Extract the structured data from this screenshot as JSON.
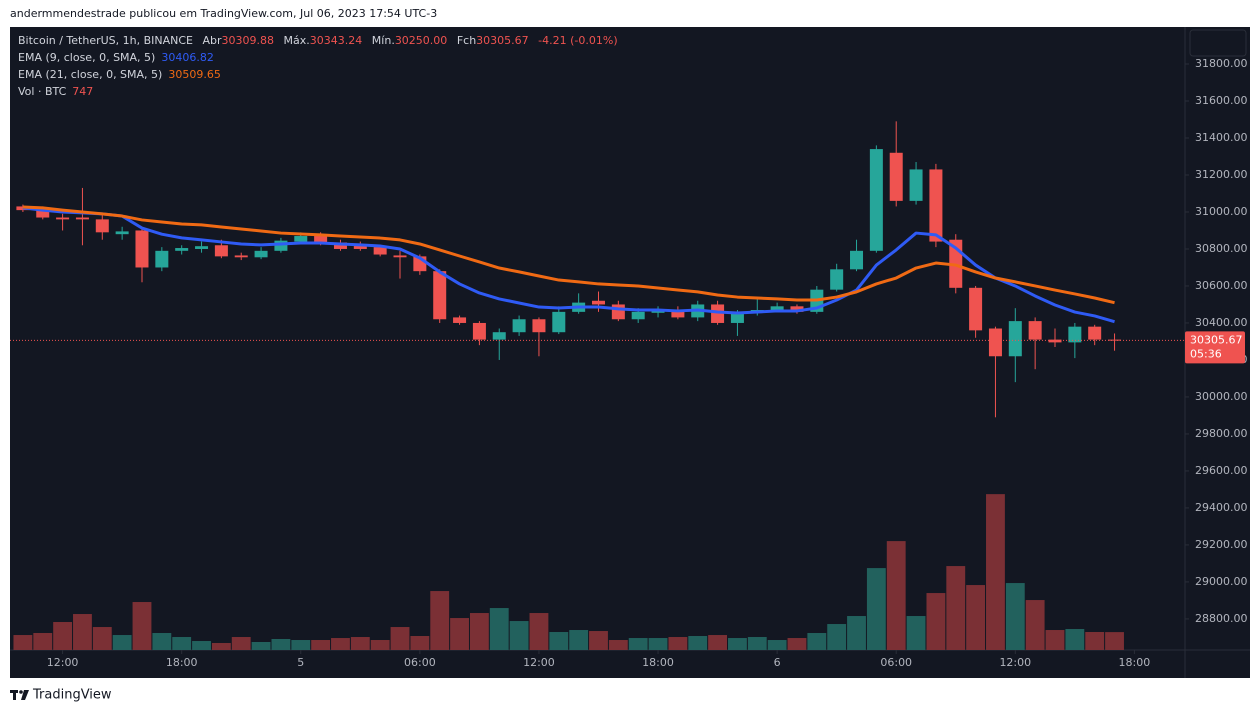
{
  "page": {
    "attribution": "andermmendestrade publicou em TradingView.com, Jul 06, 2023 17:54 UTC-3",
    "brand": "TradingView"
  },
  "chart_data": {
    "type": "candlestick",
    "title": "Bitcoin / TetherUS, 1h, BINANCE",
    "header": {
      "open_label": "Abr",
      "high_label": "Máx.",
      "low_label": "Mín.",
      "close_label": "Fch",
      "low_value_label": "30250.00",
      "change": "-4.21 (-0.01%)"
    },
    "open": [
      31030,
      31020,
      30970,
      30970,
      30960,
      30880,
      30900,
      30700,
      30790,
      30800,
      30820,
      30765,
      30755,
      30790,
      30840,
      30870,
      30835,
      30820,
      30810,
      30765,
      30760,
      30680,
      30430,
      30400,
      30310,
      30350,
      30420,
      30350,
      30460,
      30520,
      30500,
      30420,
      30455,
      30470,
      30430,
      30500,
      30400,
      30460,
      30470,
      30490,
      30460,
      30580,
      30690,
      30790,
      31320,
      31060,
      31230,
      30850,
      30590,
      30370,
      30220,
      30410,
      30310,
      30295,
      30380,
      30309.88
    ],
    "high": [
      31040,
      31030,
      30990,
      31130,
      30990,
      30920,
      30910,
      30810,
      30820,
      30840,
      30850,
      30780,
      30810,
      30860,
      30890,
      30890,
      30850,
      30840,
      30820,
      30790,
      30770,
      30690,
      30440,
      30410,
      30370,
      30440,
      30430,
      30490,
      30560,
      30570,
      30520,
      30480,
      30490,
      30490,
      30520,
      30520,
      30470,
      30530,
      30510,
      30500,
      30600,
      30720,
      30850,
      31360,
      31490,
      31270,
      31260,
      30880,
      30600,
      30380,
      30480,
      30430,
      30370,
      30400,
      30390,
      30343.24
    ],
    "low": [
      31000,
      30960,
      30900,
      30820,
      30850,
      30850,
      30620,
      30680,
      30770,
      30780,
      30750,
      30740,
      30745,
      30780,
      30830,
      30820,
      30790,
      30790,
      30760,
      30640,
      30660,
      30400,
      30390,
      30280,
      30200,
      30330,
      30220,
      30340,
      30450,
      30460,
      30410,
      30400,
      30430,
      30420,
      30410,
      30390,
      30330,
      30440,
      30460,
      30450,
      30450,
      30570,
      30680,
      30780,
      31030,
      31040,
      30810,
      30560,
      30320,
      29890,
      30080,
      30150,
      30270,
      30210,
      30280,
      30250
    ],
    "close": [
      31010,
      30970,
      30960,
      30960,
      30890,
      30895,
      30700,
      30790,
      30805,
      30815,
      30760,
      30755,
      30790,
      30845,
      30870,
      30830,
      30800,
      30800,
      30770,
      30755,
      30680,
      30420,
      30400,
      30310,
      30350,
      30420,
      30350,
      30460,
      30510,
      30500,
      30420,
      30460,
      30470,
      30430,
      30500,
      30400,
      30460,
      30470,
      30490,
      30460,
      30580,
      30690,
      30790,
      31340,
      31060,
      31230,
      30840,
      30590,
      30360,
      30220,
      30410,
      30310,
      30295,
      30380,
      30310,
      30305.67
    ],
    "volume_name": "Vol · BTC",
    "volume": [
      625,
      709,
      1168,
      1501,
      959,
      625,
      2002,
      709,
      542,
      375,
      292,
      542,
      334,
      459,
      417,
      417,
      500,
      542,
      417,
      959,
      584,
      2460,
      1334,
      1543,
      1751,
      1209,
      1543,
      751,
      834,
      792,
      417,
      500,
      500,
      542,
      584,
      625,
      500,
      542,
      417,
      500,
      709,
      1084,
      1418,
      3419,
      4545,
      1418,
      2377,
      3503,
      2711,
      6505,
      2794,
      2085,
      834,
      876,
      751,
      747
    ],
    "series": [
      {
        "name": "EMA (9, close, 0, SMA, 5)",
        "color": "#2f5bf5",
        "values": [
          31022,
          31010,
          31000,
          30995,
          30990,
          30978,
          30913,
          30880,
          30860,
          30849,
          30838,
          30827,
          30822,
          30827,
          30832,
          30832,
          30827,
          30822,
          30816,
          30800,
          30751,
          30676,
          30611,
          30562,
          30530,
          30508,
          30486,
          30481,
          30486,
          30486,
          30476,
          30470,
          30470,
          30465,
          30470,
          30459,
          30454,
          30459,
          30465,
          30465,
          30481,
          30524,
          30578,
          30713,
          30795,
          30886,
          30876,
          30805,
          30713,
          30643,
          30600,
          30546,
          30497,
          30459,
          30438,
          30406.82
        ]
      },
      {
        "name": "EMA (21, close, 0, SMA, 5)",
        "color": "#f06a14",
        "values": [
          31027,
          31022,
          31010,
          31000,
          30990,
          30978,
          30957,
          30946,
          30935,
          30930,
          30919,
          30908,
          30897,
          30886,
          30881,
          30876,
          30870,
          30865,
          30859,
          30849,
          30827,
          30795,
          30762,
          30730,
          30697,
          30676,
          30654,
          30632,
          30622,
          30611,
          30605,
          30600,
          30589,
          30578,
          30568,
          30551,
          30540,
          30535,
          30530,
          30524,
          30524,
          30540,
          30568,
          30611,
          30643,
          30697,
          30724,
          30713,
          30676,
          30643,
          30622,
          30600,
          30578,
          30557,
          30535,
          30509.65
        ]
      }
    ],
    "up_color": "#26a69a",
    "down_color": "#ef5350",
    "volume_up_color": "#22615d",
    "volume_down_color": "#7b3035",
    "ylim": [
      28632,
      32000
    ],
    "yticks": [
      {
        "value": 28800,
        "label": "28800.00"
      },
      {
        "value": 29000,
        "label": "29000.00"
      },
      {
        "value": 29200,
        "label": "29200.00"
      },
      {
        "value": 29400,
        "label": "29400.00"
      },
      {
        "value": 29600,
        "label": "29600.00"
      },
      {
        "value": 29800,
        "label": "29800.00"
      },
      {
        "value": 30000,
        "label": "30000.00"
      },
      {
        "value": 30200,
        "label": "30200.00"
      },
      {
        "value": 30400,
        "label": "30400.00"
      },
      {
        "value": 30600,
        "label": "30600.00"
      },
      {
        "value": 30800,
        "label": "30800.00"
      },
      {
        "value": 31000,
        "label": "31000.00"
      },
      {
        "value": 31200,
        "label": "31200.00"
      },
      {
        "value": 31400,
        "label": "31400.00"
      },
      {
        "value": 31600,
        "label": "31600.00"
      },
      {
        "value": 31800,
        "label": "31800.00"
      }
    ],
    "volume_ylim": [
      0,
      26000
    ],
    "xlim": [
      -0.65,
      58.55
    ],
    "xticks": [
      {
        "value": 2,
        "label": "12:00"
      },
      {
        "value": 8,
        "label": "18:00"
      },
      {
        "value": 14,
        "label": "5"
      },
      {
        "value": 20,
        "label": "06:00"
      },
      {
        "value": 26,
        "label": "12:00"
      },
      {
        "value": 32,
        "label": "18:00"
      },
      {
        "value": 38,
        "label": "6"
      },
      {
        "value": 44,
        "label": "06:00"
      },
      {
        "value": 50,
        "label": "12:00"
      },
      {
        "value": 56,
        "label": "18:00"
      }
    ],
    "grid": false,
    "countdown": "05:36"
  }
}
